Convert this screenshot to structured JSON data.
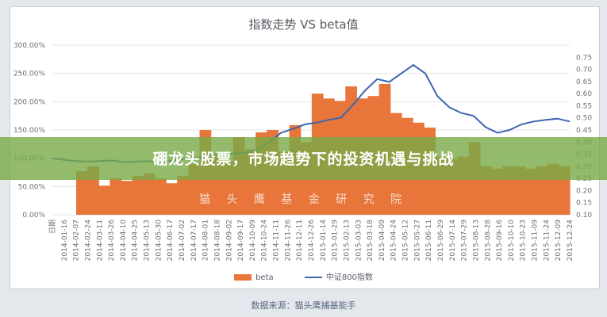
{
  "banner": {
    "headline": "硼龙头股票，市场趋势下的投资机遇与挑战"
  },
  "footer": {
    "source": "数据来源：猫头鹰捕基能手"
  },
  "watermark": "猫 头 鹰 基 金 研 究 院",
  "colors": {
    "beta": "#e8763a",
    "index": "#3b66b0",
    "banner": "#78aa46"
  },
  "chart_data": {
    "type": "bar",
    "title": "指数走势 VS beta值",
    "xlabel": "",
    "ylabel_left": "",
    "ylabel_right": "",
    "left_axis": {
      "ticks": [
        "0.00%",
        "50.00%",
        "100.00%",
        "150.00%",
        "200.00%",
        "250.00%",
        "300.00%"
      ],
      "range": [
        0,
        300
      ]
    },
    "right_axis": {
      "ticks": [
        "0.10",
        "0.15",
        "0.20",
        "0.25",
        "0.30",
        "0.35",
        "0.40",
        "0.45",
        "0.50",
        "0.55",
        "0.60",
        "0.65",
        "0.70",
        "0.75"
      ],
      "range": [
        0.1,
        0.8
      ]
    },
    "x_first_label": "日期",
    "x_labels": [
      "2014-01-16",
      "2014-02-07",
      "2014-02-24",
      "2014-03-11",
      "2014-03-26",
      "2014-04-10",
      "2014-04-25",
      "2014-05-13",
      "2014-05-30",
      "2014-06-17",
      "2014-07-02",
      "2014-07-17",
      "2014-08-01",
      "2014-08-18",
      "2014-09-02",
      "2014-09-17",
      "2014-10-09",
      "2014-10-24",
      "2014-11-11",
      "2014-11-26",
      "2014-12-11",
      "2014-12-26",
      "2015-01-14",
      "2015-01-29",
      "2015-02-13",
      "2015-03-03",
      "2015-03-18",
      "2015-04-09",
      "2015-04-24",
      "2015-05-12",
      "2015-05-27",
      "2015-06-11",
      "2015-06-29",
      "2015-07-14",
      "2015-07-29",
      "2015-08-13",
      "2015-08-28",
      "2015-09-16",
      "2015-10-10",
      "2015-10-23",
      "2015-11-09",
      "2015-11-24",
      "2015-12-09",
      "2015-12-24"
    ],
    "series": [
      {
        "name": "beta",
        "axis": "right",
        "kind": "bar",
        "values": [
          0.28,
          0.3,
          0.22,
          0.25,
          0.24,
          0.26,
          0.27,
          0.25,
          0.23,
          0.26,
          0.31,
          0.45,
          0.34,
          0.32,
          0.42,
          0.37,
          0.44,
          0.45,
          0.36,
          0.47,
          0.4,
          0.6,
          0.58,
          0.57,
          0.63,
          0.58,
          0.59,
          0.64,
          0.52,
          0.5,
          0.48,
          0.46,
          0.34,
          0.33,
          0.34,
          0.4,
          0.3,
          0.29,
          0.3,
          0.3,
          0.29,
          0.3,
          0.31,
          0.3
        ]
      },
      {
        "name": "中证800指数",
        "axis": "left",
        "kind": "line",
        "values": [
          100,
          97,
          95,
          94,
          95,
          96,
          93,
          94,
          95,
          93,
          96,
          99,
          101,
          104,
          107,
          108,
          110,
          113,
          128,
          145,
          152,
          160,
          163,
          168,
          172,
          195,
          220,
          240,
          235,
          250,
          265,
          250,
          210,
          190,
          180,
          175,
          155,
          145,
          150,
          160,
          165,
          168,
          170,
          165
        ]
      }
    ],
    "legend": [
      "beta",
      "中证800指数"
    ],
    "legend_position": "bottom",
    "grid": true
  }
}
